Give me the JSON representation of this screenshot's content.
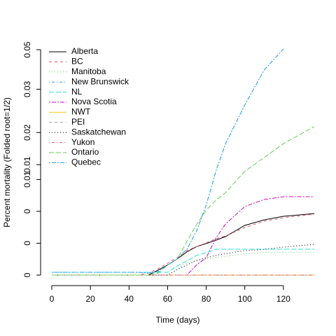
{
  "chart_data": {
    "type": "line",
    "xlabel": "Time (days)",
    "ylabel": "Percent mortality (Folded root=1/2)",
    "yscale": "sqrt",
    "x": [
      0,
      45,
      50,
      55,
      60,
      65,
      70,
      75,
      80,
      85,
      90,
      100,
      110,
      120,
      136
    ],
    "xlim": [
      0,
      136
    ],
    "xticks": [
      0,
      20,
      40,
      60,
      80,
      100,
      120
    ],
    "ylim": [
      0,
      0.05
    ],
    "yticks": [
      {
        "value": 0,
        "label": "0"
      },
      {
        "value": 0.001,
        "label": "0"
      },
      {
        "value": 0.004,
        "label": "0"
      },
      {
        "value": 0.009,
        "label": "0.01"
      },
      {
        "value": 0.012,
        "label": "0.01"
      },
      {
        "value": 0.02,
        "label": "0.02"
      },
      {
        "value": 0.034,
        "label": "0.03"
      },
      {
        "value": 0.05,
        "label": "0.05"
      }
    ],
    "legend": "top-left",
    "series": [
      {
        "name": "Alberta",
        "color": "#000000",
        "dash": "solid",
        "values": [
          0,
          0,
          0,
          2.4e-05,
          0.0001,
          0.000255,
          0.00053,
          0.0008,
          0.00098,
          0.0012,
          0.00146,
          0.00243,
          0.003,
          0.0034,
          0.00373
        ]
      },
      {
        "name": "BC",
        "color": "#DF536B",
        "dash": "dashed",
        "values": [
          0,
          0,
          4e-06,
          4e-05,
          0.00014,
          0.0003,
          0.00059,
          0.0008,
          0.00102,
          0.0013,
          0.00151,
          0.00223,
          0.00286,
          0.00324,
          0.00365
        ]
      },
      {
        "name": "Manitoba",
        "color": "#61D04F",
        "dash": "dotted",
        "values": [
          0,
          0,
          0,
          0,
          0,
          3e-05,
          0.00016,
          0.0002,
          0.000255,
          0.0003,
          0.00035,
          0.00045,
          0.0005,
          0.0005,
          0.0005
        ]
      },
      {
        "name": "New Brunswick",
        "color": "#2297E6",
        "dash": "dotdash",
        "values": [
          0,
          0,
          0,
          0,
          0,
          0,
          0,
          0,
          0,
          0,
          0,
          0,
          0,
          0,
          0
        ]
      },
      {
        "name": "NL",
        "color": "#28E2E5",
        "dash": "longdash",
        "values": [
          7.7e-06,
          7.7e-06,
          7.7e-06,
          7.7e-06,
          7.7e-06,
          8e-05,
          0.0002,
          0.00038,
          0.0005,
          0.00066,
          0.00066,
          0.00066,
          0.00066,
          0.00066,
          0.00066
        ]
      },
      {
        "name": "Nova Scotia",
        "color": "#CD0BBC",
        "dash": "twodash",
        "values": [
          0,
          0,
          0,
          0,
          0,
          0,
          0,
          0.0001,
          0.0003,
          0.00135,
          0.00257,
          0.00463,
          0.00562,
          0.00605,
          0.00605
        ]
      },
      {
        "name": "NWT",
        "color": "#F5C710",
        "dash": "solid",
        "values": [
          0,
          0,
          0,
          0,
          0,
          0,
          0,
          0,
          0,
          0,
          0,
          0,
          0,
          0,
          0
        ]
      },
      {
        "name": "PEI",
        "color": "#9E9E9E",
        "dash": "dashed",
        "values": [
          0,
          0,
          0,
          0,
          0,
          0,
          0,
          0,
          0,
          0,
          0,
          0,
          0,
          0,
          0
        ]
      },
      {
        "name": "Saskatchewan",
        "color": "#000000",
        "dash": "dotted",
        "values": [
          0,
          0,
          0,
          0,
          0,
          3e-05,
          0.0001,
          0.00021,
          0.0003,
          0.00038,
          0.00045,
          0.00059,
          0.00065,
          0.00077,
          0.00093
        ]
      },
      {
        "name": "Yukon",
        "color": "#DF536B",
        "dash": "dotdash",
        "values": [
          0,
          0,
          0,
          0,
          0,
          0,
          0,
          0,
          0,
          0,
          0,
          0,
          0,
          0,
          0
        ]
      },
      {
        "name": "Ontario",
        "color": "#61D04F",
        "dash": "longdash",
        "values": [
          0,
          0,
          0,
          4e-06,
          0.0001,
          0.000255,
          0.00111,
          0.0025,
          0.00417,
          0.0055,
          0.0067,
          0.0106,
          0.0136,
          0.017,
          0.0217
        ]
      },
      {
        "name": "Quebec",
        "color": "#2297E6",
        "dash": "twodash",
        "values": [
          7.7e-06,
          7.7e-06,
          4e-06,
          1.2e-05,
          0.0001,
          0.000255,
          0.00066,
          0.00191,
          0.00482,
          0.0106,
          0.017,
          0.0285,
          0.0414,
          0.0503,
          null
        ]
      }
    ]
  }
}
